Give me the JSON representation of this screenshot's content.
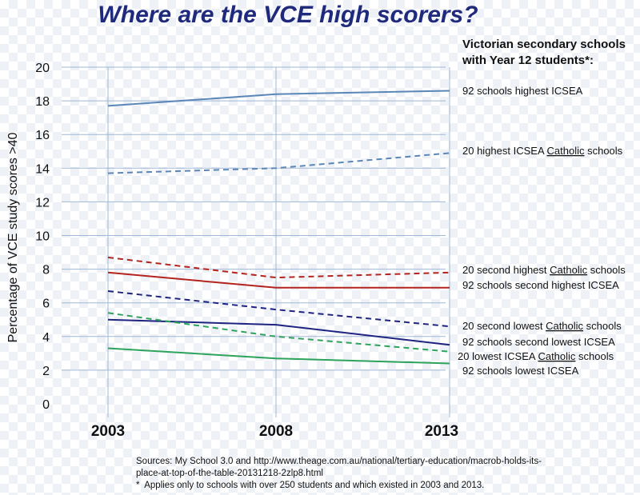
{
  "title": "Where are the VCE high scorers?",
  "legend_heading": [
    "Victorian secondary schools",
    "with Year 12 students*:"
  ],
  "sources": [
    "Sources: My School 3.0 and http://www.theage.com.au/national/tertiary-education/macrob-holds-its-",
    "place-at-top-of-the-table-20131218-2zlp8.html",
    "*  Applies only to schools with over 250 students and which existed in 2003 and 2013."
  ],
  "chart_data": {
    "type": "line",
    "title": "Where are the VCE high scorers?",
    "ylabel": "Percentage of VCE study scores >40",
    "xlabel": "",
    "categories": [
      "2003",
      "2008",
      "2013"
    ],
    "yticks": [
      "0",
      "2",
      "4",
      "6",
      "8",
      "10",
      "12",
      "14",
      "16",
      "18",
      "20"
    ],
    "ylim": [
      0,
      20
    ],
    "grid": true,
    "series": [
      {
        "name": "92 schools highest ICSEA",
        "values": [
          17.7,
          18.4,
          18.6
        ],
        "color": "#5a86b8",
        "dashed": false,
        "label_parts": [
          "92 schools highest ICSEA"
        ]
      },
      {
        "name": "20 highest ICSEA Catholic schools",
        "values": [
          13.7,
          14.0,
          14.9
        ],
        "color": "#5a86b8",
        "dashed": true,
        "label_parts": [
          "20 highest ICSEA ",
          "Catholic",
          " schools"
        ]
      },
      {
        "name": "20 second highest Catholic schools",
        "values": [
          8.7,
          7.5,
          7.8
        ],
        "color": "#b3241f",
        "dashed": true,
        "label_parts": [
          "20 second highest ",
          "Catholic",
          " schools"
        ]
      },
      {
        "name": "92 schools second highest ICSEA",
        "values": [
          7.8,
          6.9,
          6.9
        ],
        "color": "#b3241f",
        "dashed": false,
        "label_parts": [
          "92 schools second highest ICSEA"
        ]
      },
      {
        "name": "20 second lowest Catholic schools",
        "values": [
          6.7,
          5.6,
          4.6
        ],
        "color": "#1f2380",
        "dashed": true,
        "label_parts": [
          "20 second lowest ",
          "Catholic",
          " schools"
        ]
      },
      {
        "name": "92 schools second lowest ICSEA",
        "values": [
          5.0,
          4.7,
          3.5
        ],
        "color": "#1f2380",
        "dashed": false,
        "label_parts": [
          "92 schools second lowest ICSEA"
        ]
      },
      {
        "name": "20 lowest ICSEA Catholic schools",
        "values": [
          5.4,
          4.0,
          3.1
        ],
        "color": "#2da35c",
        "dashed": true,
        "label_parts": [
          "20 lowest ICSEA ",
          "Catholic",
          " schools"
        ]
      },
      {
        "name": "92 schools lowest ICSEA",
        "values": [
          3.3,
          2.7,
          2.4
        ],
        "color": "#2da35c",
        "dashed": false,
        "label_parts": [
          "92 schools lowest ICSEA"
        ]
      }
    ]
  }
}
